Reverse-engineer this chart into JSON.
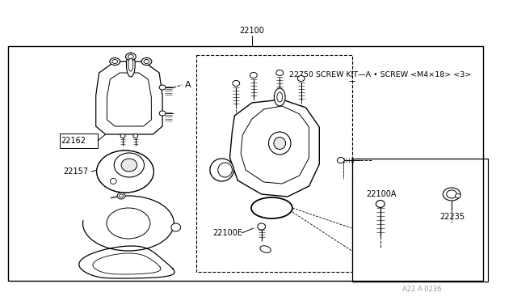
{
  "bg_color": "#ffffff",
  "line_color": "#000000",
  "text_color": "#000000",
  "label_22100": "22100",
  "label_22162": "22162",
  "label_22157": "22157",
  "label_22750": "22750 SCREW KIT—A • SCREW <M4×18> <3>",
  "label_22100A": "22100A",
  "label_22235": "22235",
  "label_22100E": "22100E",
  "label_A": "A",
  "watermark": "A22 A 0236"
}
